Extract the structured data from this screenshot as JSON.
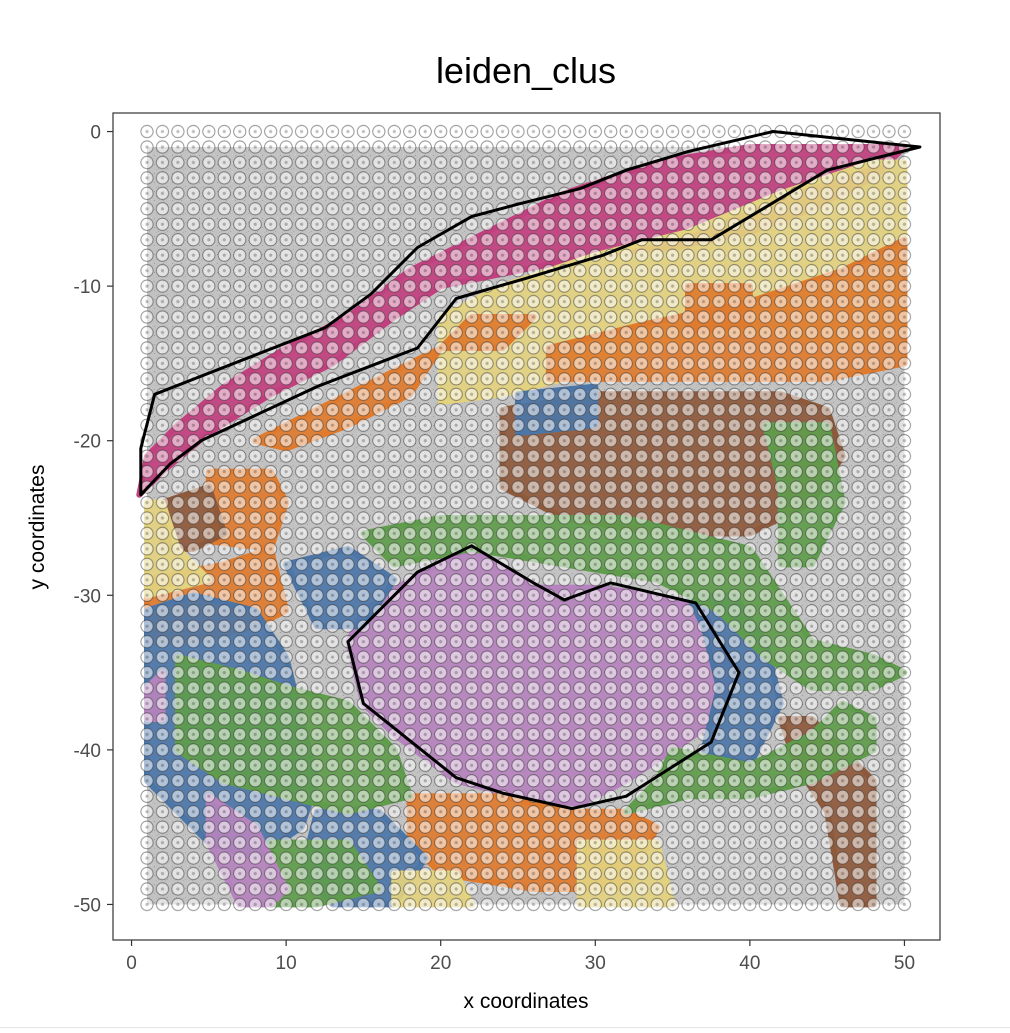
{
  "chart_data": {
    "type": "scatter",
    "title": "leiden_clus",
    "xlabel": "x coordinates",
    "ylabel": "y coordinates",
    "xlim": [
      -1.2,
      52.3
    ],
    "ylim": [
      -52.3,
      1.2
    ],
    "x_ticks": [
      0,
      10,
      20,
      30,
      40,
      50
    ],
    "y_ticks": [
      0,
      -10,
      -20,
      -30,
      -40,
      -50
    ],
    "grid": false,
    "legend": "none",
    "background_image": {
      "x": [
        1,
        50
      ],
      "y": [
        -50,
        -1
      ],
      "description": "grayscale tissue image"
    },
    "cluster_colors": {
      "magenta": "#c2407f",
      "orange": "#e07b2e",
      "yellow": "#e3d37f",
      "brown": "#8f5a3c",
      "blue": "#4c76a8",
      "green": "#5f9c4c",
      "purple": "#b583bd"
    },
    "regions": [
      {
        "label": "magenta",
        "polygon": [
          [
            0.5,
            -23.5
          ],
          [
            1,
            -21
          ],
          [
            3,
            -19
          ],
          [
            6,
            -16.5
          ],
          [
            10,
            -14
          ],
          [
            14,
            -12
          ],
          [
            18,
            -9
          ],
          [
            23,
            -6.5
          ],
          [
            28,
            -4
          ],
          [
            34,
            -2
          ],
          [
            40,
            -1
          ],
          [
            47,
            -1
          ],
          [
            50,
            -1
          ],
          [
            48,
            -3
          ],
          [
            44,
            -5
          ],
          [
            40,
            -6.5
          ],
          [
            35,
            -7.5
          ],
          [
            30,
            -8
          ],
          [
            25,
            -9
          ],
          [
            20,
            -10
          ],
          [
            17,
            -12
          ],
          [
            13,
            -15
          ],
          [
            9,
            -17
          ],
          [
            5,
            -19.5
          ],
          [
            2,
            -22
          ]
        ]
      },
      {
        "label": "purple",
        "polygon": [
          [
            14,
            -33
          ],
          [
            15,
            -31
          ],
          [
            18,
            -29
          ],
          [
            22,
            -27
          ],
          [
            26,
            -29.5
          ],
          [
            30,
            -29.5
          ],
          [
            34,
            -30
          ],
          [
            37,
            -31
          ],
          [
            39,
            -35
          ],
          [
            38,
            -38
          ],
          [
            35,
            -40
          ],
          [
            32,
            -42
          ],
          [
            29,
            -43.5
          ],
          [
            25,
            -43
          ],
          [
            21,
            -42
          ],
          [
            17,
            -39
          ],
          [
            15,
            -37
          ]
        ]
      },
      {
        "label": "yellow",
        "polygon": [
          [
            20,
            -12
          ],
          [
            24,
            -10
          ],
          [
            30,
            -8
          ],
          [
            36,
            -6.5
          ],
          [
            42,
            -4
          ],
          [
            48,
            -2
          ],
          [
            50,
            -2
          ],
          [
            50,
            -13
          ],
          [
            46,
            -14
          ],
          [
            42,
            -13
          ],
          [
            38,
            -13
          ],
          [
            33,
            -14
          ],
          [
            28,
            -16
          ],
          [
            24,
            -17
          ],
          [
            20,
            -17.5
          ]
        ]
      },
      {
        "label": "orange",
        "polygon": [
          [
            8,
            -20
          ],
          [
            12,
            -18
          ],
          [
            16,
            -16
          ],
          [
            20,
            -14
          ],
          [
            18,
            -17
          ],
          [
            14,
            -19
          ],
          [
            10,
            -20.5
          ]
        ]
      },
      {
        "label": "orange",
        "polygon": [
          [
            20,
            -14
          ],
          [
            24,
            -14
          ],
          [
            26,
            -12
          ],
          [
            22,
            -12
          ]
        ]
      },
      {
        "label": "orange",
        "polygon": [
          [
            27,
            -14
          ],
          [
            33,
            -12.5
          ],
          [
            40,
            -11
          ],
          [
            46,
            -9
          ],
          [
            50,
            -7
          ],
          [
            50,
            -15
          ],
          [
            45,
            -16
          ],
          [
            38,
            -16
          ],
          [
            32,
            -16
          ],
          [
            27,
            -16
          ]
        ]
      },
      {
        "label": "orange",
        "polygon": [
          [
            36,
            -13
          ],
          [
            40,
            -12.5
          ],
          [
            40,
            -10
          ],
          [
            36,
            -10
          ]
        ]
      },
      {
        "label": "orange",
        "polygon": [
          [
            1,
            -29
          ],
          [
            6,
            -28
          ],
          [
            9,
            -27
          ],
          [
            10,
            -31
          ],
          [
            8,
            -32
          ],
          [
            4,
            -33
          ],
          [
            1,
            -33
          ]
        ]
      },
      {
        "label": "orange",
        "polygon": [
          [
            18,
            -43
          ],
          [
            24,
            -43
          ],
          [
            28,
            -44
          ],
          [
            32,
            -44
          ],
          [
            34,
            -45
          ],
          [
            32,
            -49
          ],
          [
            26,
            -49
          ],
          [
            20,
            -48
          ],
          [
            18,
            -46
          ]
        ]
      },
      {
        "label": "orange",
        "polygon": [
          [
            5,
            -22
          ],
          [
            9,
            -22
          ],
          [
            10,
            -24
          ],
          [
            9,
            -27
          ],
          [
            5,
            -26.5
          ]
        ]
      },
      {
        "label": "brown",
        "polygon": [
          [
            24,
            -18
          ],
          [
            30,
            -17
          ],
          [
            36,
            -17
          ],
          [
            42,
            -17
          ],
          [
            45,
            -18
          ],
          [
            46,
            -21
          ],
          [
            44,
            -24
          ],
          [
            40,
            -26
          ],
          [
            34,
            -26
          ],
          [
            28,
            -25
          ],
          [
            24,
            -23
          ]
        ]
      },
      {
        "label": "brown",
        "polygon": [
          [
            42,
            -38
          ],
          [
            44,
            -38
          ],
          [
            46,
            -40
          ],
          [
            48,
            -42
          ],
          [
            48,
            -50
          ],
          [
            46,
            -50
          ],
          [
            45,
            -44
          ],
          [
            43,
            -41
          ]
        ]
      },
      {
        "label": "brown",
        "polygon": [
          [
            2,
            -24
          ],
          [
            5,
            -23
          ],
          [
            6,
            -26
          ],
          [
            4,
            -27
          ],
          [
            2,
            -27
          ]
        ]
      },
      {
        "label": "blue",
        "polygon": [
          [
            1,
            -31
          ],
          [
            4,
            -30
          ],
          [
            8,
            -31
          ],
          [
            10,
            -34
          ],
          [
            11,
            -38
          ],
          [
            12,
            -42
          ],
          [
            11,
            -45
          ],
          [
            8,
            -47
          ],
          [
            5,
            -46
          ],
          [
            3,
            -44
          ],
          [
            1,
            -42
          ]
        ]
      },
      {
        "label": "blue",
        "polygon": [
          [
            10,
            -28
          ],
          [
            14,
            -27
          ],
          [
            17,
            -29
          ],
          [
            15,
            -32
          ],
          [
            12,
            -32
          ]
        ]
      },
      {
        "label": "blue",
        "polygon": [
          [
            36,
            -30
          ],
          [
            39,
            -30
          ],
          [
            41,
            -33
          ],
          [
            42,
            -37
          ],
          [
            40,
            -41
          ],
          [
            37,
            -40
          ],
          [
            38,
            -36
          ],
          [
            37,
            -32
          ]
        ]
      },
      {
        "label": "blue",
        "polygon": [
          [
            12,
            -44
          ],
          [
            16,
            -44
          ],
          [
            19,
            -47
          ],
          [
            17,
            -50
          ],
          [
            13,
            -50
          ],
          [
            11,
            -48
          ]
        ]
      },
      {
        "label": "blue",
        "polygon": [
          [
            25,
            -17
          ],
          [
            30,
            -16.5
          ],
          [
            30,
            -19
          ],
          [
            25,
            -19.5
          ]
        ]
      },
      {
        "label": "green",
        "polygon": [
          [
            15,
            -26
          ],
          [
            20,
            -25
          ],
          [
            26,
            -25
          ],
          [
            32,
            -25
          ],
          [
            36,
            -26
          ],
          [
            40,
            -27
          ],
          [
            42,
            -30
          ],
          [
            44,
            -33
          ],
          [
            48,
            -34
          ],
          [
            50,
            -35
          ],
          [
            48,
            -36
          ],
          [
            44,
            -36
          ],
          [
            41,
            -34
          ],
          [
            38,
            -31
          ],
          [
            34,
            -29
          ],
          [
            28,
            -28
          ],
          [
            22,
            -27
          ],
          [
            17,
            -28
          ]
        ]
      },
      {
        "label": "green",
        "polygon": [
          [
            3,
            -34
          ],
          [
            7,
            -35
          ],
          [
            10,
            -36
          ],
          [
            14,
            -37
          ],
          [
            17,
            -40
          ],
          [
            18,
            -43
          ],
          [
            14,
            -44
          ],
          [
            10,
            -43
          ],
          [
            6,
            -42
          ],
          [
            3,
            -40
          ]
        ]
      },
      {
        "label": "green",
        "polygon": [
          [
            35,
            -40
          ],
          [
            40,
            -41
          ],
          [
            44,
            -39
          ],
          [
            46,
            -37
          ],
          [
            48,
            -38
          ],
          [
            48,
            -40
          ],
          [
            44,
            -42
          ],
          [
            40,
            -43
          ],
          [
            36,
            -43
          ],
          [
            32,
            -44
          ],
          [
            34,
            -42
          ]
        ]
      },
      {
        "label": "green",
        "polygon": [
          [
            41,
            -19
          ],
          [
            45,
            -19
          ],
          [
            46,
            -24
          ],
          [
            44,
            -28
          ],
          [
            42,
            -28
          ],
          [
            42,
            -23
          ]
        ]
      },
      {
        "label": "green",
        "polygon": [
          [
            9,
            -46
          ],
          [
            14,
            -46
          ],
          [
            16,
            -49
          ],
          [
            12,
            -50
          ],
          [
            9,
            -50
          ]
        ]
      },
      {
        "label": "yellow",
        "polygon": [
          [
            1,
            -24
          ],
          [
            2,
            -24
          ],
          [
            3,
            -27
          ],
          [
            5,
            -29
          ],
          [
            1,
            -30
          ]
        ]
      },
      {
        "label": "yellow",
        "polygon": [
          [
            17,
            -48
          ],
          [
            21,
            -48
          ],
          [
            22,
            -50
          ],
          [
            17,
            -50
          ]
        ]
      },
      {
        "label": "yellow",
        "polygon": [
          [
            29,
            -46
          ],
          [
            34,
            -46
          ],
          [
            35,
            -50
          ],
          [
            29,
            -50
          ]
        ]
      },
      {
        "label": "purple",
        "polygon": [
          [
            1,
            -36
          ],
          [
            2,
            -35
          ],
          [
            2,
            -38
          ],
          [
            1,
            -38
          ]
        ]
      },
      {
        "label": "purple",
        "polygon": [
          [
            5,
            -43
          ],
          [
            8,
            -45
          ],
          [
            10,
            -49
          ],
          [
            9,
            -50
          ],
          [
            7,
            -50
          ],
          [
            5,
            -46
          ]
        ]
      }
    ],
    "annotation_polygons": [
      {
        "name": "upper-region-outline",
        "points": [
          [
            0.6,
            -23.5
          ],
          [
            0.6,
            -20.5
          ],
          [
            1.5,
            -17
          ],
          [
            12.5,
            -12.7
          ],
          [
            15.5,
            -10.5
          ],
          [
            18.5,
            -7.5
          ],
          [
            22,
            -5.5
          ],
          [
            25,
            -4.7
          ],
          [
            29,
            -3.7
          ],
          [
            32,
            -2.5
          ],
          [
            36,
            -1.3
          ],
          [
            41.5,
            0
          ],
          [
            51,
            -1
          ],
          [
            45,
            -2.5
          ],
          [
            37.5,
            -7
          ],
          [
            33,
            -7
          ],
          [
            30.5,
            -8
          ],
          [
            25.5,
            -9.5
          ],
          [
            21,
            -10.8
          ],
          [
            18.5,
            -14
          ],
          [
            12,
            -16.5
          ],
          [
            4.5,
            -20
          ],
          [
            2.5,
            -21.5
          ]
        ]
      },
      {
        "name": "center-region-outline",
        "points": [
          [
            14,
            -33
          ],
          [
            18.5,
            -28.5
          ],
          [
            22,
            -26.8
          ],
          [
            26,
            -29.2
          ],
          [
            28,
            -30.3
          ],
          [
            31,
            -29.2
          ],
          [
            36.5,
            -30.5
          ],
          [
            39.3,
            -35
          ],
          [
            37.5,
            -39.5
          ],
          [
            32,
            -43
          ],
          [
            28.5,
            -43.8
          ],
          [
            24,
            -42.8
          ],
          [
            21,
            -41.8
          ],
          [
            15,
            -37
          ]
        ]
      }
    ]
  }
}
